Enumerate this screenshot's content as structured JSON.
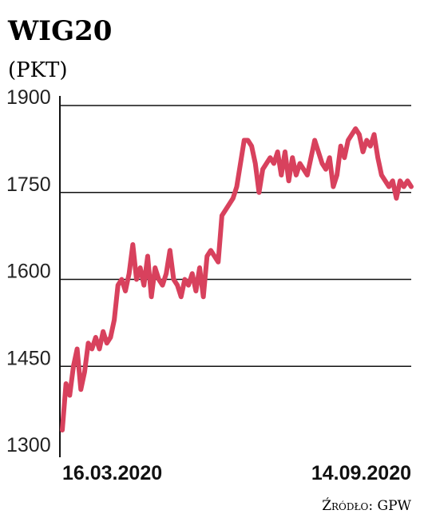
{
  "chart_data": {
    "type": "line",
    "title": "WIG20",
    "subtitle": "(PKT)",
    "source": "Źródło: GPW",
    "categories": [
      "16.03.2020",
      null,
      null,
      null,
      null,
      null,
      null,
      null,
      null,
      null,
      null,
      null,
      null,
      null,
      null,
      null,
      null,
      null,
      null,
      null,
      null,
      null,
      null,
      null,
      null,
      null,
      null,
      null,
      null,
      null,
      null,
      null,
      null,
      null,
      null,
      null,
      null,
      null,
      null,
      null,
      null,
      null,
      null,
      null,
      null,
      null,
      null,
      null,
      null,
      null,
      null,
      null,
      null,
      null,
      null,
      null,
      null,
      null,
      null,
      null,
      null,
      null,
      null,
      null,
      null,
      null,
      null,
      null,
      null,
      null,
      null,
      null,
      null,
      null,
      null,
      null,
      null,
      null,
      null,
      null,
      null,
      null,
      null,
      null,
      null,
      null,
      null,
      null,
      null,
      null,
      null,
      null,
      null,
      null,
      "14.09.2020"
    ],
    "values": [
      1340,
      1420,
      1400,
      1450,
      1480,
      1410,
      1440,
      1490,
      1480,
      1500,
      1480,
      1510,
      1490,
      1500,
      1530,
      1590,
      1600,
      1580,
      1610,
      1660,
      1600,
      1620,
      1590,
      1640,
      1570,
      1620,
      1600,
      1590,
      1610,
      1650,
      1600,
      1590,
      1570,
      1600,
      1590,
      1610,
      1580,
      1620,
      1570,
      1640,
      1650,
      1640,
      1630,
      1710,
      1720,
      1730,
      1740,
      1760,
      1800,
      1840,
      1840,
      1830,
      1800,
      1750,
      1790,
      1800,
      1810,
      1800,
      1820,
      1780,
      1820,
      1770,
      1810,
      1780,
      1800,
      1790,
      1780,
      1810,
      1840,
      1820,
      1800,
      1790,
      1810,
      1760,
      1780,
      1830,
      1810,
      1840,
      1850,
      1860,
      1850,
      1820,
      1840,
      1830,
      1850,
      1810,
      1780,
      1770,
      1760,
      1770,
      1740,
      1770,
      1760,
      1770,
      1760
    ],
    "color": "#d8415d",
    "ylim": [
      1300,
      1900
    ],
    "yticks": [
      1300,
      1450,
      1600,
      1750,
      1900
    ],
    "grid": true
  }
}
